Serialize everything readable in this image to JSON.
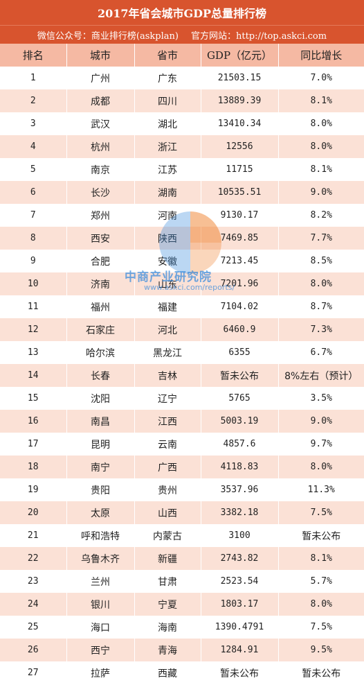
{
  "header": {
    "title": "2017年省会城市GDP总量排行榜",
    "wechat": "微信公众号：商业排行榜(askplan)",
    "website": "官方网站：http://top.askci.com"
  },
  "table": {
    "columns": [
      "排名",
      "城市",
      "省市",
      "GDP（亿元）",
      "同比增长"
    ],
    "rows": [
      [
        "1",
        "广州",
        "广东",
        "21503.15",
        "7.0%"
      ],
      [
        "2",
        "成都",
        "四川",
        "13889.39",
        "8.1%"
      ],
      [
        "3",
        "武汉",
        "湖北",
        "13410.34",
        "8.0%"
      ],
      [
        "4",
        "杭州",
        "浙江",
        "12556",
        "8.0%"
      ],
      [
        "5",
        "南京",
        "江苏",
        "11715",
        "8.1%"
      ],
      [
        "6",
        "长沙",
        "湖南",
        "10535.51",
        "9.0%"
      ],
      [
        "7",
        "郑州",
        "河南",
        "9130.17",
        "8.2%"
      ],
      [
        "8",
        "西安",
        "陕西",
        "7469.85",
        "7.7%"
      ],
      [
        "9",
        "合肥",
        "安徽",
        "7213.45",
        "8.5%"
      ],
      [
        "10",
        "济南",
        "山东",
        "7201.96",
        "8.0%"
      ],
      [
        "11",
        "福州",
        "福建",
        "7104.02",
        "8.7%"
      ],
      [
        "12",
        "石家庄",
        "河北",
        "6460.9",
        "7.3%"
      ],
      [
        "13",
        "哈尔滨",
        "黑龙江",
        "6355",
        "6.7%"
      ],
      [
        "14",
        "长春",
        "吉林",
        "暂未公布",
        "8%左右（预计）"
      ],
      [
        "15",
        "沈阳",
        "辽宁",
        "5765",
        "3.5%"
      ],
      [
        "16",
        "南昌",
        "江西",
        "5003.19",
        "9.0%"
      ],
      [
        "17",
        "昆明",
        "云南",
        "4857.6",
        "9.7%"
      ],
      [
        "18",
        "南宁",
        "广西",
        "4118.83",
        "8.0%"
      ],
      [
        "19",
        "贵阳",
        "贵州",
        "3537.96",
        "11.3%"
      ],
      [
        "20",
        "太原",
        "山西",
        "3382.18",
        "7.5%"
      ],
      [
        "21",
        "呼和浩特",
        "内蒙古",
        "3100",
        "暂未公布"
      ],
      [
        "22",
        "乌鲁木齐",
        "新疆",
        "2743.82",
        "8.1%"
      ],
      [
        "23",
        "兰州",
        "甘肃",
        "2523.54",
        "5.7%"
      ],
      [
        "24",
        "银川",
        "宁夏",
        "1803.17",
        "8.0%"
      ],
      [
        "25",
        "海口",
        "海南",
        "1390.4791",
        "7.5%"
      ],
      [
        "26",
        "西宁",
        "青海",
        "1284.91",
        "9.5%"
      ],
      [
        "27",
        "拉萨",
        "西藏",
        "暂未公布",
        "暂未公布"
      ]
    ]
  },
  "watermark": {
    "name": "中商产业研究院",
    "url": "www.askci.com/reports/",
    "colors": {
      "orange": "#f08a3c",
      "blue": "#3c8cdc"
    }
  }
}
